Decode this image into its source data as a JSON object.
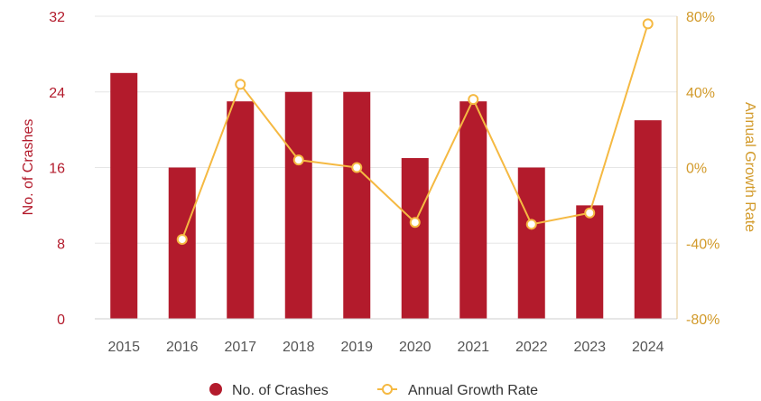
{
  "chart_data": {
    "type": "bar",
    "categories": [
      "2015",
      "2016",
      "2017",
      "2018",
      "2019",
      "2020",
      "2021",
      "2022",
      "2023",
      "2024"
    ],
    "series": [
      {
        "name": "No. of Crashes",
        "type": "bar",
        "axis": "left",
        "values": [
          26,
          16,
          23,
          24,
          24,
          17,
          23,
          16,
          12,
          21
        ]
      },
      {
        "name": "Annual Growth Rate",
        "type": "line",
        "axis": "right",
        "values": [
          null,
          -38,
          44,
          4,
          0,
          -29,
          36,
          -30,
          -24,
          76
        ]
      }
    ],
    "ylabel": "No. of Crashes",
    "y2label": "Annual Growth Rate",
    "ylim": [
      0,
      32
    ],
    "y2lim": [
      -80,
      80
    ],
    "yticks": [
      "0",
      "8",
      "16",
      "24",
      "32"
    ],
    "y2ticks": [
      "-80%",
      "-40%",
      "0%",
      "40%",
      "80%"
    ],
    "grid": true,
    "legend_position": "bottom-center",
    "colors": {
      "bar": "#b31b2c",
      "line": "#f5b942",
      "grid": "#e6e6e6"
    }
  }
}
